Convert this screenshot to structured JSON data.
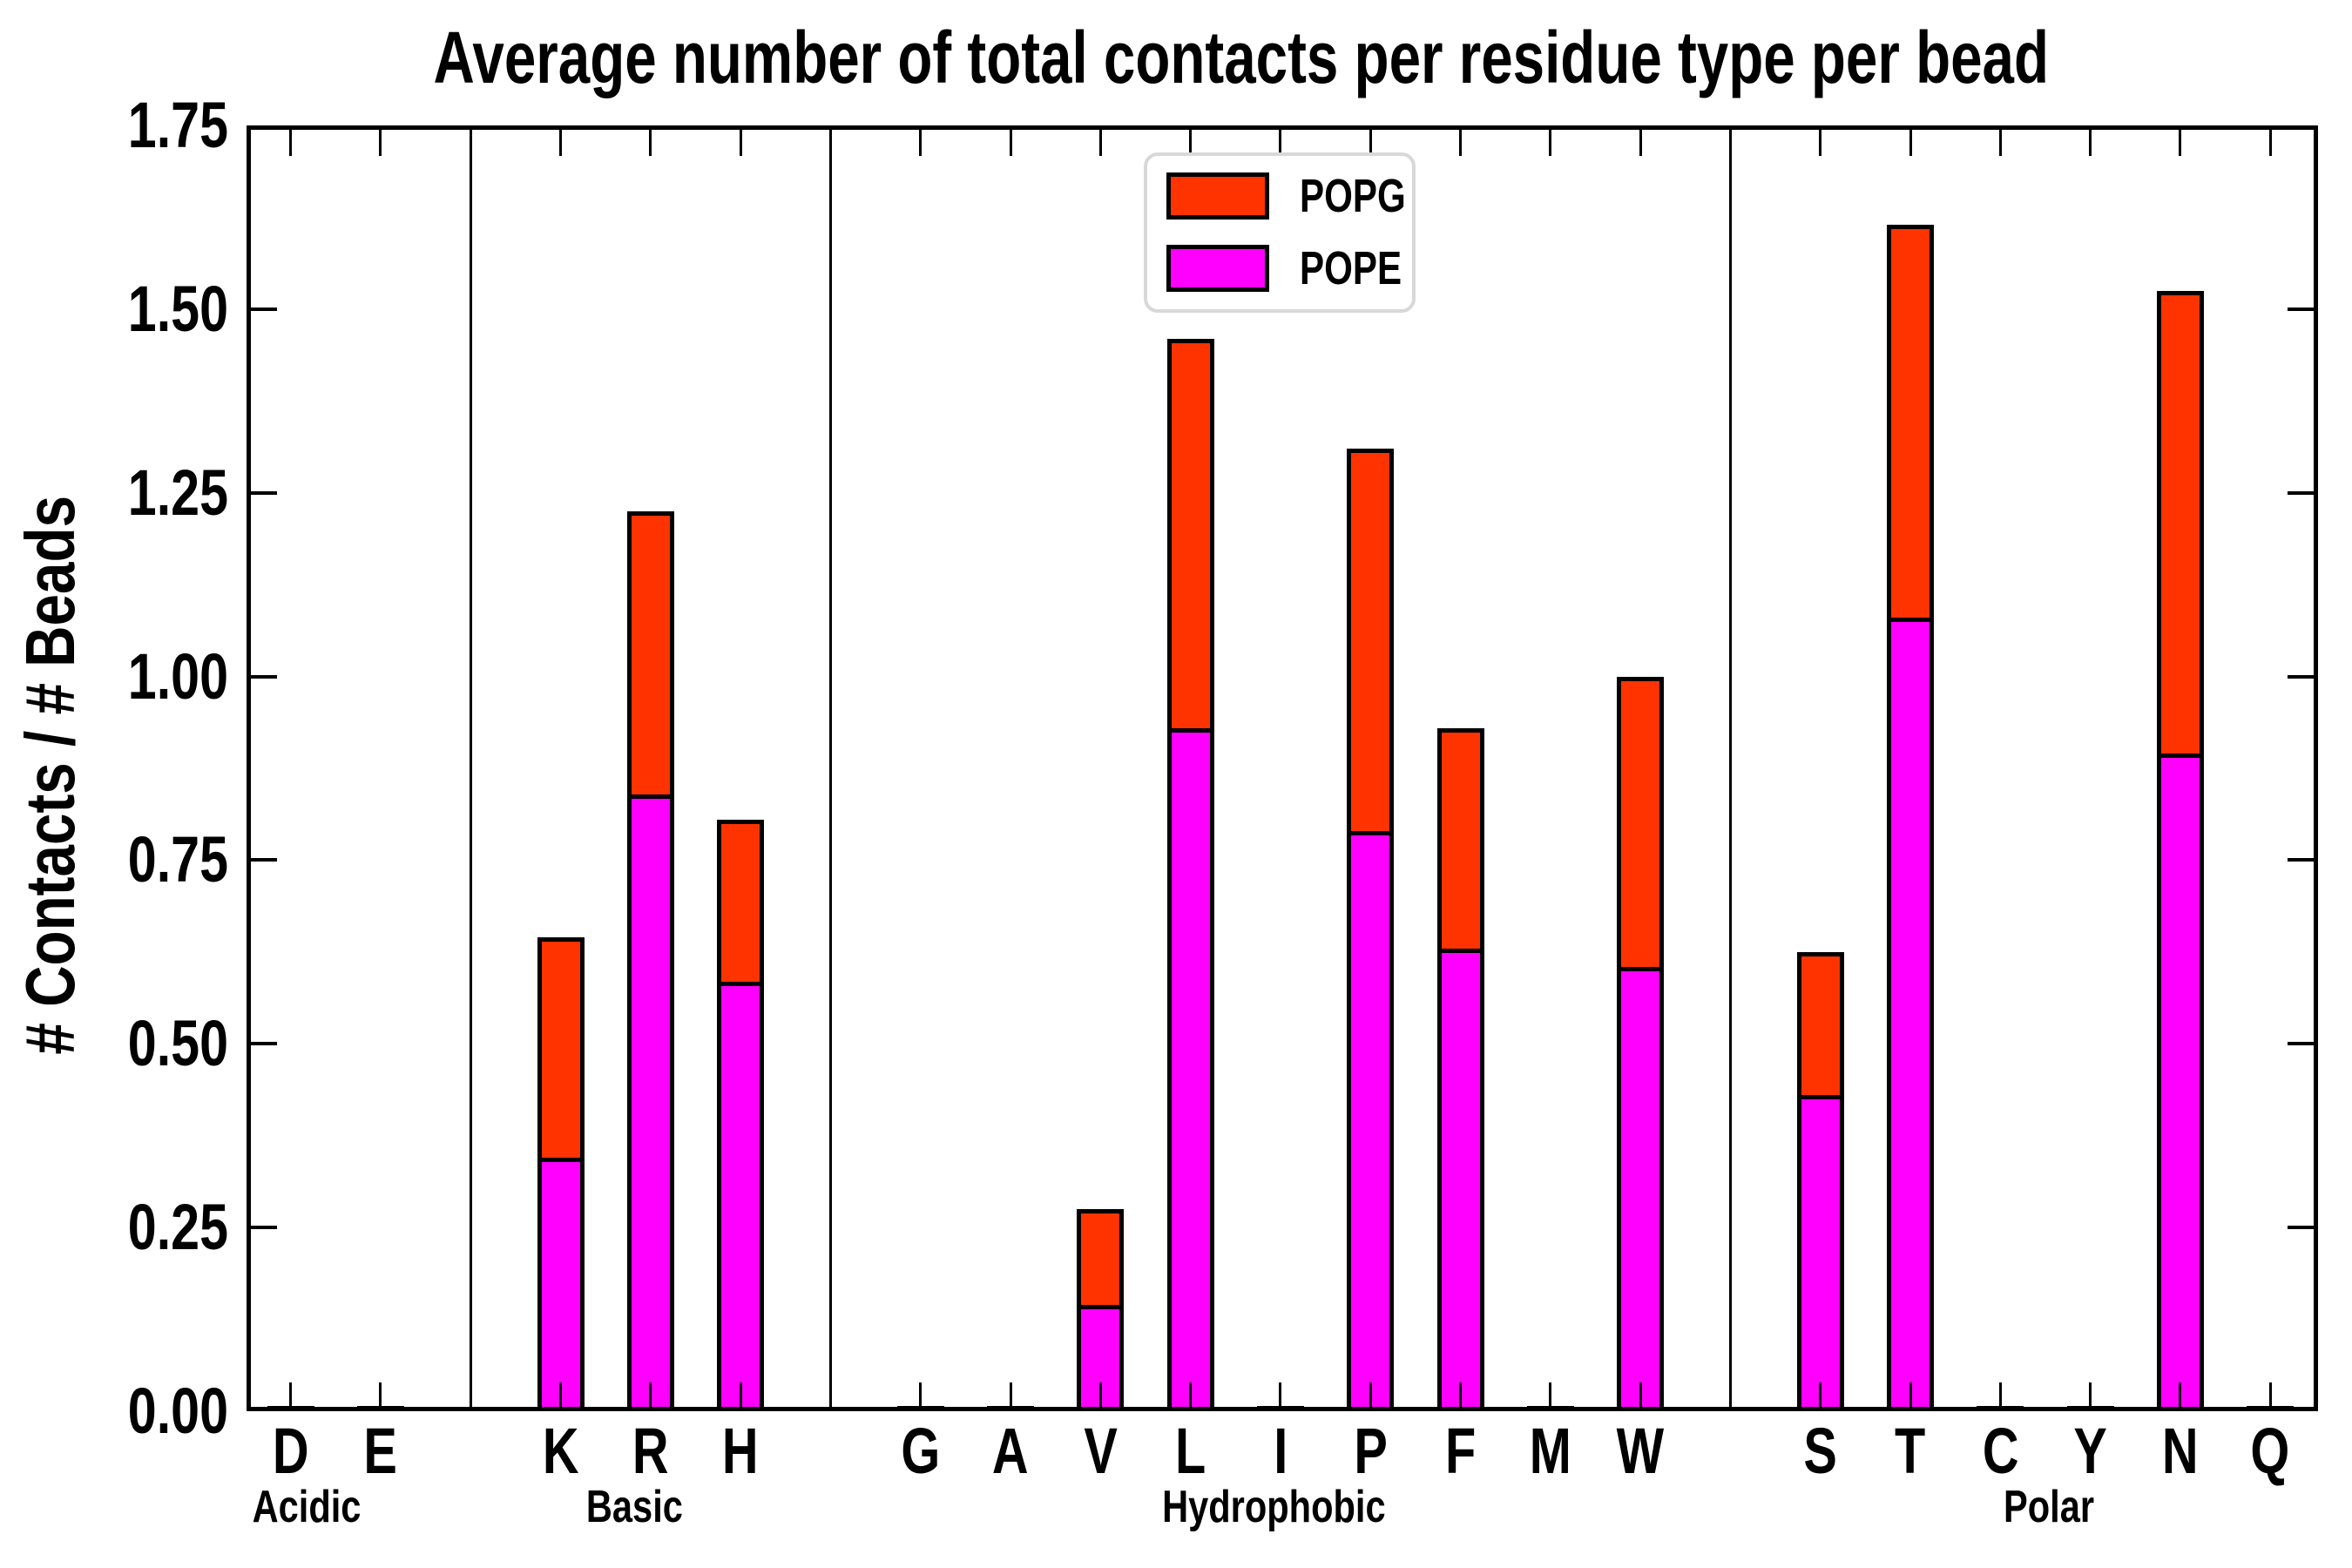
{
  "title": "Average number of total contacts per residue type per bead",
  "y_axis": {
    "label": "# Contacts / # Beads",
    "tick_labels": [
      "0.00",
      "0.25",
      "0.50",
      "0.75",
      "1.00",
      "1.25",
      "1.50",
      "1.75"
    ],
    "min": 0,
    "max": 1.75,
    "tick_step": 0.25
  },
  "legend": {
    "entries": [
      {
        "label": "POPG",
        "color": "#FF3300"
      },
      {
        "label": "POPE",
        "color": "#FF00FF"
      }
    ]
  },
  "groups": [
    {
      "label": "Acidic",
      "residues": [
        "D",
        "E"
      ]
    },
    {
      "label": "Basic",
      "residues": [
        "K",
        "R",
        "H"
      ]
    },
    {
      "label": "Hydrophobic",
      "residues": [
        "G",
        "A",
        "V",
        "L",
        "I",
        "P",
        "F",
        "M",
        "W"
      ]
    },
    {
      "label": "Polar",
      "residues": [
        "S",
        "T",
        "C",
        "Y",
        "N",
        "Q"
      ]
    }
  ],
  "chart_data": {
    "type": "bar",
    "stacked": true,
    "title": "Average number of total contacts per residue type per bead",
    "xlabel": "",
    "ylabel": "# Contacts / # Beads",
    "ylim": [
      0,
      1.75
    ],
    "grid": false,
    "legend_position": "upper center",
    "categories": [
      "D",
      "E",
      "K",
      "R",
      "H",
      "G",
      "A",
      "V",
      "L",
      "I",
      "P",
      "F",
      "M",
      "W",
      "S",
      "T",
      "C",
      "Y",
      "N",
      "Q"
    ],
    "category_groups": [
      "Acidic",
      "Acidic",
      "Basic",
      "Basic",
      "Basic",
      "Hydrophobic",
      "Hydrophobic",
      "Hydrophobic",
      "Hydrophobic",
      "Hydrophobic",
      "Hydrophobic",
      "Hydrophobic",
      "Hydrophobic",
      "Hydrophobic",
      "Polar",
      "Polar",
      "Polar",
      "Polar",
      "Polar",
      "Polar"
    ],
    "group_separators_after": [
      "E",
      "H",
      "W"
    ],
    "series": [
      {
        "name": "POPE",
        "color": "#FF00FF",
        "values": [
          0,
          0,
          0.345,
          0.84,
          0.585,
          0,
          0,
          0.145,
          0.93,
          0,
          0.79,
          0.63,
          0,
          0.605,
          0.43,
          1.08,
          0,
          0,
          0.895,
          0
        ]
      },
      {
        "name": "POPG",
        "color": "#FF3300",
        "values": [
          0,
          0,
          0.3,
          0.385,
          0.22,
          0,
          0,
          0.13,
          0.53,
          0,
          0.52,
          0.3,
          0,
          0.395,
          0.195,
          0.535,
          0,
          0,
          0.63,
          0
        ]
      }
    ],
    "stacked_totals": [
      0,
      0,
      0.645,
      1.225,
      0.805,
      0,
      0,
      0.275,
      1.46,
      0,
      1.31,
      0.93,
      0,
      1.0,
      0.625,
      1.615,
      0,
      0,
      1.525,
      0
    ]
  }
}
